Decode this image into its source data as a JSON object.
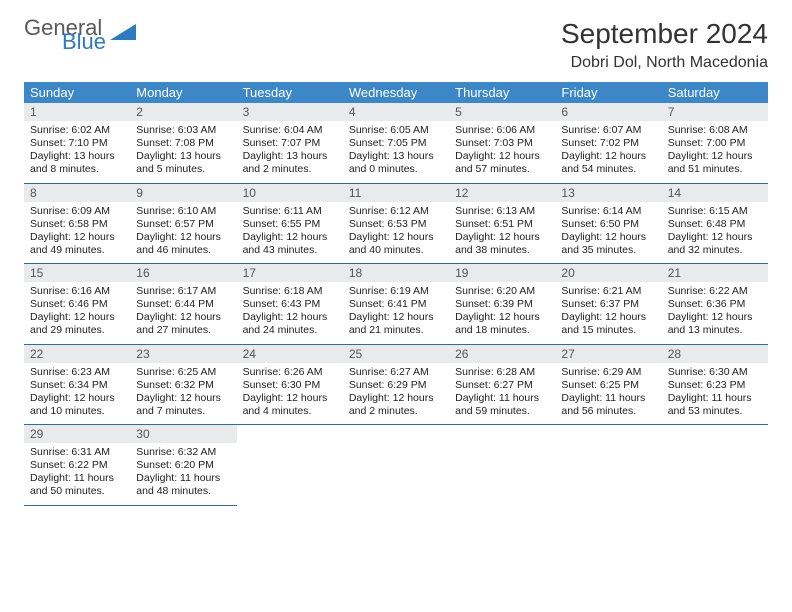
{
  "logo": {
    "main": "General",
    "sub": "Blue",
    "tri_color": "#2a7bbf"
  },
  "title": "September 2024",
  "subtitle": "Dobri Dol, North Macedonia",
  "colors": {
    "header_bg": "#3b87c8",
    "header_text": "#ffffff",
    "daynum_bg": "#e9eaeb",
    "row_border": "#2f6aa0",
    "page_bg": "#ffffff"
  },
  "weekdays": [
    "Sunday",
    "Monday",
    "Tuesday",
    "Wednesday",
    "Thursday",
    "Friday",
    "Saturday"
  ],
  "days": [
    {
      "n": "1",
      "sr": "6:02 AM",
      "ss": "7:10 PM",
      "dl": "13 hours and 8 minutes."
    },
    {
      "n": "2",
      "sr": "6:03 AM",
      "ss": "7:08 PM",
      "dl": "13 hours and 5 minutes."
    },
    {
      "n": "3",
      "sr": "6:04 AM",
      "ss": "7:07 PM",
      "dl": "13 hours and 2 minutes."
    },
    {
      "n": "4",
      "sr": "6:05 AM",
      "ss": "7:05 PM",
      "dl": "13 hours and 0 minutes."
    },
    {
      "n": "5",
      "sr": "6:06 AM",
      "ss": "7:03 PM",
      "dl": "12 hours and 57 minutes."
    },
    {
      "n": "6",
      "sr": "6:07 AM",
      "ss": "7:02 PM",
      "dl": "12 hours and 54 minutes."
    },
    {
      "n": "7",
      "sr": "6:08 AM",
      "ss": "7:00 PM",
      "dl": "12 hours and 51 minutes."
    },
    {
      "n": "8",
      "sr": "6:09 AM",
      "ss": "6:58 PM",
      "dl": "12 hours and 49 minutes."
    },
    {
      "n": "9",
      "sr": "6:10 AM",
      "ss": "6:57 PM",
      "dl": "12 hours and 46 minutes."
    },
    {
      "n": "10",
      "sr": "6:11 AM",
      "ss": "6:55 PM",
      "dl": "12 hours and 43 minutes."
    },
    {
      "n": "11",
      "sr": "6:12 AM",
      "ss": "6:53 PM",
      "dl": "12 hours and 40 minutes."
    },
    {
      "n": "12",
      "sr": "6:13 AM",
      "ss": "6:51 PM",
      "dl": "12 hours and 38 minutes."
    },
    {
      "n": "13",
      "sr": "6:14 AM",
      "ss": "6:50 PM",
      "dl": "12 hours and 35 minutes."
    },
    {
      "n": "14",
      "sr": "6:15 AM",
      "ss": "6:48 PM",
      "dl": "12 hours and 32 minutes."
    },
    {
      "n": "15",
      "sr": "6:16 AM",
      "ss": "6:46 PM",
      "dl": "12 hours and 29 minutes."
    },
    {
      "n": "16",
      "sr": "6:17 AM",
      "ss": "6:44 PM",
      "dl": "12 hours and 27 minutes."
    },
    {
      "n": "17",
      "sr": "6:18 AM",
      "ss": "6:43 PM",
      "dl": "12 hours and 24 minutes."
    },
    {
      "n": "18",
      "sr": "6:19 AM",
      "ss": "6:41 PM",
      "dl": "12 hours and 21 minutes."
    },
    {
      "n": "19",
      "sr": "6:20 AM",
      "ss": "6:39 PM",
      "dl": "12 hours and 18 minutes."
    },
    {
      "n": "20",
      "sr": "6:21 AM",
      "ss": "6:37 PM",
      "dl": "12 hours and 15 minutes."
    },
    {
      "n": "21",
      "sr": "6:22 AM",
      "ss": "6:36 PM",
      "dl": "12 hours and 13 minutes."
    },
    {
      "n": "22",
      "sr": "6:23 AM",
      "ss": "6:34 PM",
      "dl": "12 hours and 10 minutes."
    },
    {
      "n": "23",
      "sr": "6:25 AM",
      "ss": "6:32 PM",
      "dl": "12 hours and 7 minutes."
    },
    {
      "n": "24",
      "sr": "6:26 AM",
      "ss": "6:30 PM",
      "dl": "12 hours and 4 minutes."
    },
    {
      "n": "25",
      "sr": "6:27 AM",
      "ss": "6:29 PM",
      "dl": "12 hours and 2 minutes."
    },
    {
      "n": "26",
      "sr": "6:28 AM",
      "ss": "6:27 PM",
      "dl": "11 hours and 59 minutes."
    },
    {
      "n": "27",
      "sr": "6:29 AM",
      "ss": "6:25 PM",
      "dl": "11 hours and 56 minutes."
    },
    {
      "n": "28",
      "sr": "6:30 AM",
      "ss": "6:23 PM",
      "dl": "11 hours and 53 minutes."
    },
    {
      "n": "29",
      "sr": "6:31 AM",
      "ss": "6:22 PM",
      "dl": "11 hours and 50 minutes."
    },
    {
      "n": "30",
      "sr": "6:32 AM",
      "ss": "6:20 PM",
      "dl": "11 hours and 48 minutes."
    }
  ],
  "labels": {
    "sunrise": "Sunrise: ",
    "sunset": "Sunset: ",
    "daylight": "Daylight: "
  },
  "layout": {
    "start_weekday": 0,
    "total_cells": 35
  }
}
